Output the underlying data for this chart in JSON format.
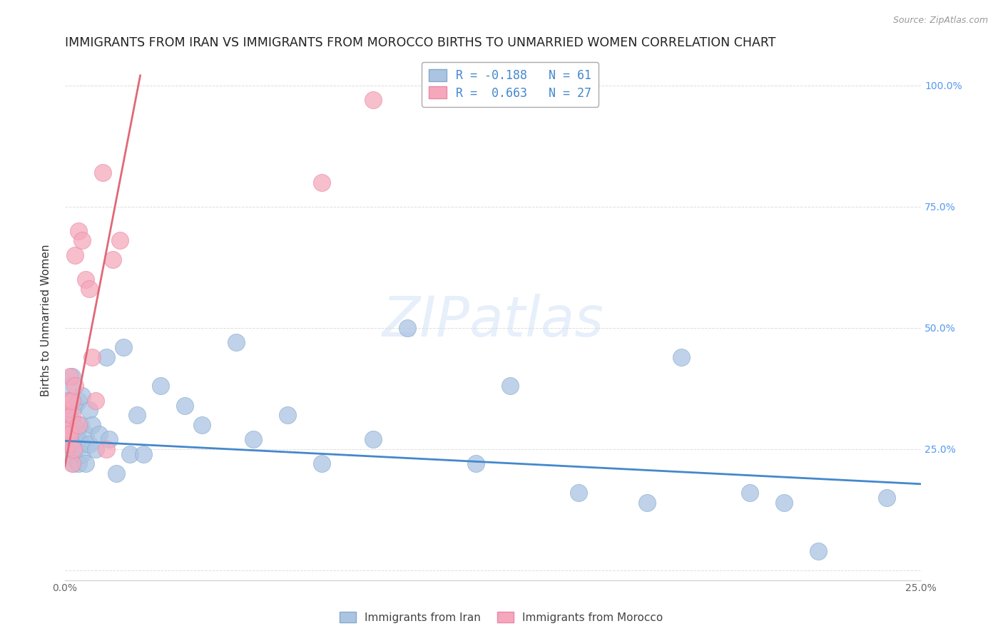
{
  "title": "IMMIGRANTS FROM IRAN VS IMMIGRANTS FROM MOROCCO BIRTHS TO UNMARRIED WOMEN CORRELATION CHART",
  "source": "Source: ZipAtlas.com",
  "ylabel": "Births to Unmarried Women",
  "xlim": [
    0.0,
    0.25
  ],
  "ylim": [
    -0.02,
    1.05
  ],
  "xticks": [
    0.0,
    0.05,
    0.1,
    0.15,
    0.2,
    0.25
  ],
  "yticks": [
    0.0,
    0.25,
    0.5,
    0.75,
    1.0
  ],
  "xtick_labels": [
    "0.0%",
    "",
    "",
    "",
    "",
    "25.0%"
  ],
  "ytick_labels_right": [
    "",
    "25.0%",
    "50.0%",
    "75.0%",
    "100.0%"
  ],
  "blue_R": -0.188,
  "blue_N": 61,
  "pink_R": 0.663,
  "pink_N": 27,
  "blue_color": "#aac4e2",
  "pink_color": "#f5a8bc",
  "blue_edge_color": "#88aacc",
  "pink_edge_color": "#e888a8",
  "blue_line_color": "#4488cc",
  "pink_line_color": "#e06878",
  "legend_blue_label": "Immigrants from Iran",
  "legend_pink_label": "Immigrants from Morocco",
  "watermark": "ZIPatlas",
  "blue_trend_x0": 0.0,
  "blue_trend_y0": 0.267,
  "blue_trend_x1": 0.25,
  "blue_trend_y1": 0.178,
  "pink_trend_x0": 0.0,
  "pink_trend_y0": 0.215,
  "pink_trend_x1": 0.022,
  "pink_trend_y1": 1.02,
  "iran_x": [
    0.0003,
    0.0005,
    0.0007,
    0.001,
    0.001,
    0.0012,
    0.0013,
    0.0015,
    0.0015,
    0.0016,
    0.0018,
    0.002,
    0.002,
    0.002,
    0.0022,
    0.0025,
    0.0025,
    0.003,
    0.003,
    0.003,
    0.003,
    0.0035,
    0.004,
    0.004,
    0.004,
    0.0045,
    0.005,
    0.005,
    0.005,
    0.006,
    0.006,
    0.007,
    0.007,
    0.008,
    0.009,
    0.01,
    0.012,
    0.013,
    0.015,
    0.017,
    0.019,
    0.021,
    0.023,
    0.028,
    0.035,
    0.04,
    0.05,
    0.055,
    0.065,
    0.075,
    0.09,
    0.1,
    0.12,
    0.13,
    0.15,
    0.17,
    0.18,
    0.2,
    0.21,
    0.22,
    0.24
  ],
  "iran_y": [
    0.3,
    0.33,
    0.28,
    0.35,
    0.27,
    0.32,
    0.25,
    0.29,
    0.38,
    0.26,
    0.28,
    0.31,
    0.24,
    0.4,
    0.26,
    0.3,
    0.22,
    0.34,
    0.27,
    0.25,
    0.23,
    0.29,
    0.35,
    0.27,
    0.22,
    0.3,
    0.36,
    0.26,
    0.24,
    0.22,
    0.28,
    0.33,
    0.26,
    0.3,
    0.25,
    0.28,
    0.44,
    0.27,
    0.2,
    0.46,
    0.24,
    0.32,
    0.24,
    0.38,
    0.34,
    0.3,
    0.47,
    0.27,
    0.32,
    0.22,
    0.27,
    0.5,
    0.22,
    0.38,
    0.16,
    0.14,
    0.44,
    0.16,
    0.14,
    0.04,
    0.15
  ],
  "morocco_x": [
    0.0003,
    0.0005,
    0.0007,
    0.001,
    0.001,
    0.0013,
    0.0015,
    0.0015,
    0.002,
    0.002,
    0.0022,
    0.0025,
    0.003,
    0.003,
    0.004,
    0.004,
    0.005,
    0.006,
    0.007,
    0.008,
    0.009,
    0.011,
    0.012,
    0.014,
    0.016,
    0.075,
    0.09
  ],
  "morocco_y": [
    0.33,
    0.28,
    0.3,
    0.35,
    0.26,
    0.29,
    0.4,
    0.28,
    0.32,
    0.22,
    0.35,
    0.25,
    0.65,
    0.38,
    0.7,
    0.3,
    0.68,
    0.6,
    0.58,
    0.44,
    0.35,
    0.82,
    0.25,
    0.64,
    0.68,
    0.8,
    0.97
  ]
}
